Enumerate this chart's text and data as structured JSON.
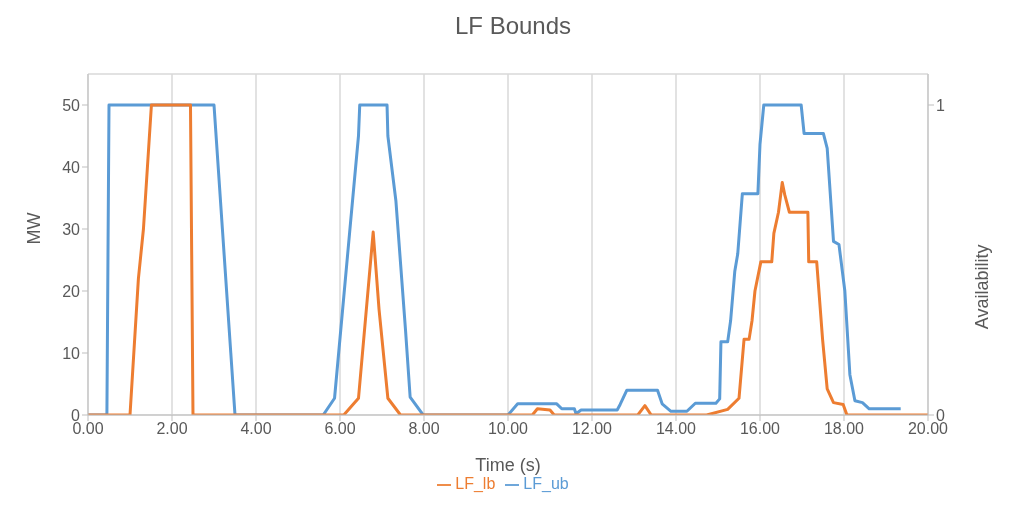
{
  "chart_data": {
    "type": "line",
    "title": "LF Bounds",
    "xlabel": "Time (s)",
    "ylabel": "MW",
    "y2label": "Availability",
    "xlim": [
      0,
      20
    ],
    "xticks": [
      {
        "value": 0,
        "label": "0.00"
      },
      {
        "value": 2,
        "label": "2.00"
      },
      {
        "value": 4,
        "label": "4.00"
      },
      {
        "value": 6,
        "label": "6.00"
      },
      {
        "value": 8,
        "label": "8.00"
      },
      {
        "value": 10,
        "label": "10.00"
      },
      {
        "value": 12,
        "label": "12.00"
      },
      {
        "value": 14,
        "label": "14.00"
      },
      {
        "value": 16,
        "label": "16.00"
      },
      {
        "value": 18,
        "label": "18.00"
      },
      {
        "value": 20,
        "label": "20.00"
      }
    ],
    "ylim": [
      0,
      55
    ],
    "yticks": [
      0,
      10,
      20,
      30,
      40,
      50
    ],
    "y2lim": [
      0,
      1.1
    ],
    "y2ticks": [
      0,
      1
    ],
    "grid": true,
    "legend": "bottom",
    "marker": "none",
    "line_style": "solid",
    "series": [
      {
        "name": "LF_ub",
        "color": "#5b9bd5",
        "x": [
          0,
          0.45,
          0.5,
          3.0,
          3.2,
          3.4,
          3.5,
          5.6,
          5.87,
          6.23,
          6.44,
          6.47,
          7.12,
          7.14,
          7.33,
          7.56,
          7.67,
          7.98,
          10.0,
          10.23,
          11.16,
          11.28,
          11.58,
          11.62,
          11.74,
          12.6,
          12.67,
          12.83,
          13.56,
          13.67,
          13.88,
          14.26,
          14.46,
          14.95,
          15.04,
          15.07,
          15.23,
          15.3,
          15.4,
          15.47,
          15.58,
          15.95,
          16.0,
          16.09,
          16.98,
          17.05,
          17.51,
          17.6,
          17.75,
          17.88,
          18.02,
          18.14,
          18.26,
          18.44,
          18.6,
          19.35
        ],
        "values": [
          0,
          0,
          50,
          50,
          30,
          10,
          0,
          0,
          2.7,
          29.5,
          45,
          50,
          50,
          45,
          34.6,
          13.7,
          2.9,
          0,
          0,
          1.8,
          1.8,
          1,
          1,
          0.2,
          0.8,
          0.8,
          1.7,
          4,
          4,
          1.8,
          0.6,
          0.6,
          1.9,
          1.9,
          2.6,
          11.8,
          11.8,
          15.2,
          23.2,
          26,
          35.7,
          35.7,
          43.7,
          50,
          50,
          45.4,
          45.4,
          43,
          28,
          27.5,
          20,
          6.5,
          2.3,
          2,
          1,
          1
        ]
      },
      {
        "name": "LF_lb",
        "color": "#ed7d31",
        "x": [
          0,
          1.0,
          1.2,
          1.32,
          1.51,
          2.44,
          2.5,
          6.09,
          6.44,
          6.79,
          6.93,
          7.14,
          7.44,
          10.58,
          10.7,
          11.0,
          11.1,
          13.09,
          13.26,
          13.41,
          14.73,
          15.23,
          15.5,
          15.62,
          15.74,
          15.81,
          15.88,
          16.02,
          16.28,
          16.33,
          16.44,
          16.53,
          16.59,
          16.7,
          17.14,
          17.16,
          17.35,
          17.49,
          17.6,
          17.75,
          17.98,
          18.07,
          20
        ],
        "values": [
          0,
          0,
          22,
          30,
          50,
          50,
          0,
          0,
          2.7,
          29.5,
          17,
          2.7,
          0,
          0,
          1,
          0.8,
          0,
          0,
          1.5,
          0,
          0,
          0.9,
          2.7,
          12.2,
          12.2,
          15.2,
          20,
          24.7,
          24.7,
          29.3,
          32.7,
          37.5,
          35.5,
          32.7,
          32.7,
          24.7,
          24.7,
          12.2,
          4.2,
          2,
          1.7,
          0,
          0
        ]
      }
    ]
  }
}
